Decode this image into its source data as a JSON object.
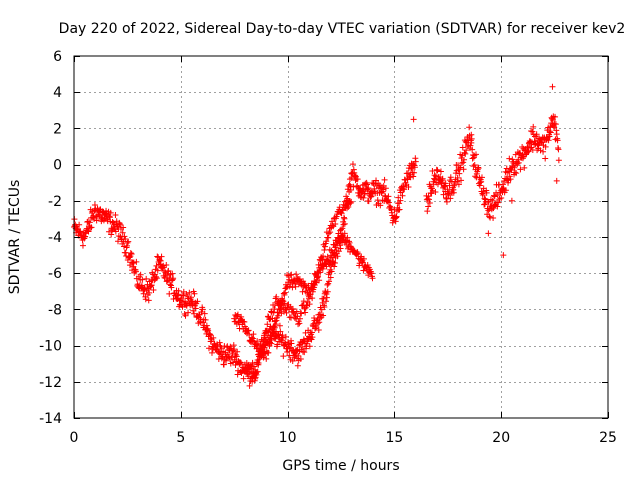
{
  "chart_data": {
    "type": "scatter",
    "title": "Day 220 of 2022, Sidereal Day-to-day VTEC variation (SDTVAR) for receiver kev2",
    "xlabel": "GPS time / hours",
    "ylabel": "SDTVAR / TECUs",
    "xlim": [
      0,
      25
    ],
    "ylim": [
      -14,
      6
    ],
    "xticks": [
      0,
      5,
      10,
      15,
      20,
      25
    ],
    "yticks": [
      -14,
      -12,
      -10,
      -8,
      -6,
      -4,
      -2,
      0,
      2,
      4,
      6
    ],
    "grid": true,
    "marker": "+",
    "series": [
      {
        "name": "SDTVAR",
        "color": "#ff0000",
        "trend": {
          "x": [
            0,
            0.5,
            1.0,
            1.5,
            2.0,
            2.5,
            3.0,
            3.5,
            4.0,
            4.5,
            5.0,
            5.5,
            6.0,
            6.5,
            7.0,
            7.5,
            8.0,
            8.5,
            9.0,
            9.5,
            10.0,
            10.5,
            11.0,
            11.5,
            12.0,
            12.5,
            13.0,
            13.5,
            14.0,
            14.5,
            15.0,
            15.5,
            16.0
          ],
          "y": [
            -3.5,
            -4.0,
            -2.5,
            -3.0,
            -3.5,
            -4.5,
            -6.5,
            -7.0,
            -5.5,
            -6.5,
            -7.5,
            -7.5,
            -8.5,
            -10.0,
            -10.5,
            -10.5,
            -11.5,
            -11.5,
            -9.5,
            -9.5,
            -10.0,
            -10.5,
            -9.5,
            -8.5,
            -6.0,
            -4.0,
            -0.5,
            -1.5,
            -1.5,
            -1.5,
            -3.0,
            -1.0,
            0.0
          ]
        },
        "branch_a": {
          "x": [
            7.5,
            8.0,
            8.5,
            9.0,
            9.5,
            10.0,
            10.5,
            11.0,
            11.5,
            12.0,
            12.5,
            13.0,
            13.5,
            14.0
          ],
          "y": [
            -8.5,
            -9.0,
            -10.0,
            -10.5,
            -8.5,
            -6.5,
            -6.5,
            -7.0,
            -6.0,
            -5.0,
            -4.0,
            -4.5,
            -5.5,
            -6.0
          ]
        },
        "branch_b": {
          "x": [
            8.0,
            8.5,
            9.0,
            9.5,
            10.0,
            10.5,
            11.0,
            11.5,
            12.0,
            12.5,
            13.0
          ],
          "y": [
            -11.0,
            -11.5,
            -9.0,
            -7.5,
            -8.0,
            -8.5,
            -7.5,
            -5.5,
            -3.5,
            -2.5,
            -2.0
          ]
        },
        "segment_late": {
          "x": [
            16.5,
            17.0,
            17.5,
            18.0,
            18.5,
            19.0,
            19.5,
            20.0,
            20.5,
            21.0,
            21.5,
            22.0,
            22.5,
            22.7
          ],
          "y": [
            -2.0,
            -0.5,
            -1.5,
            -0.5,
            1.5,
            -1.0,
            -2.5,
            -1.5,
            0.0,
            0.5,
            1.5,
            1.0,
            2.5,
            0.5
          ]
        },
        "outliers": {
          "x": [
            15.9,
            18.6,
            19.4,
            20.1,
            20.5,
            22.4,
            22.6
          ],
          "y": [
            2.5,
            1.2,
            -3.8,
            -5.0,
            -2.0,
            4.3,
            -0.9
          ]
        }
      }
    ]
  }
}
